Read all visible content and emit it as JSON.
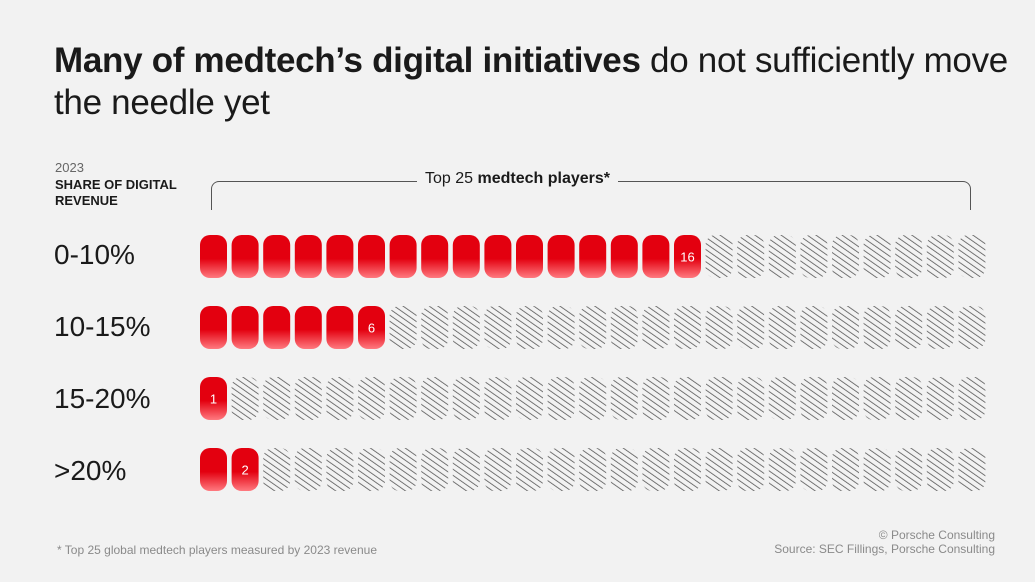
{
  "title": {
    "bold": "Many of medtech’s digital initiatives",
    "rest": " do not sufficiently move the needle yet"
  },
  "meta": {
    "year": "2023",
    "label": "Share of digital revenue"
  },
  "bracket": {
    "prefix": "Top 25 ",
    "bold": "medtech players*"
  },
  "colors": {
    "filled": "#e3000f",
    "filled_light": "#ff7a80",
    "hatch": "#555555",
    "background": "#f2f2f2"
  },
  "chart_data": {
    "type": "pictograph",
    "total": 25,
    "categories": [
      "0-10%",
      "10-15%",
      "15-20%",
      ">20%"
    ],
    "values": [
      16,
      6,
      1,
      2
    ],
    "value_labels": [
      "16",
      "6",
      "1",
      "2"
    ],
    "xlabel": "Top 25 medtech players*",
    "ylabel": "2023 share of digital revenue"
  },
  "footnote": "* Top 25 global medtech players measured by 2023 revenue",
  "credit": {
    "line1": "© Porsche Consulting",
    "line2": "Source: SEC Fillings, Porsche Consulting"
  }
}
